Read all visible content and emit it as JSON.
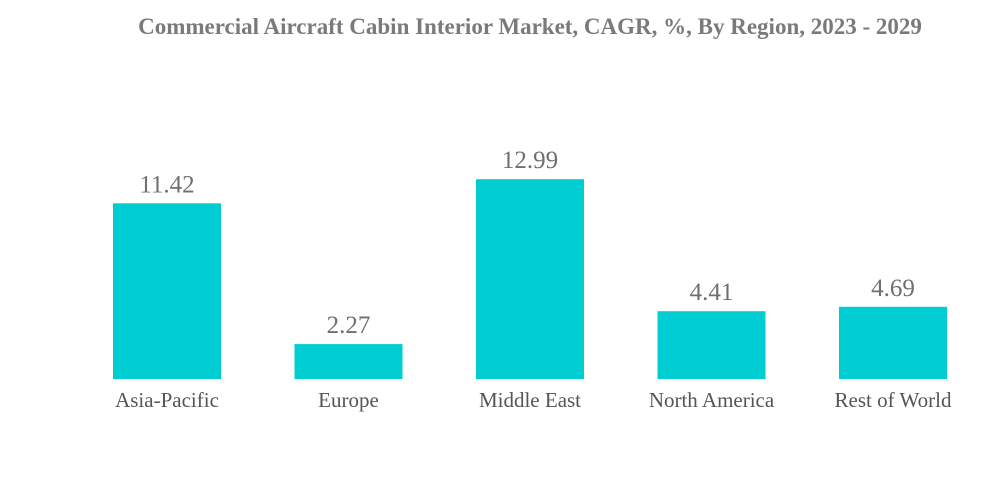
{
  "chart_data": {
    "type": "bar",
    "title": "Commercial Aircraft Cabin Interior Market, CAGR, %, By Region, 2023 - 2029",
    "categories": [
      "Asia-Pacific",
      "Europe",
      "Middle East",
      "North America",
      "Rest of World"
    ],
    "values": [
      11.42,
      2.27,
      12.99,
      4.41,
      4.69
    ],
    "xlabel": "",
    "ylabel": "",
    "ylim": [
      0,
      15
    ],
    "grid": false,
    "legend": "none",
    "bar_color": "#00cdd1"
  }
}
